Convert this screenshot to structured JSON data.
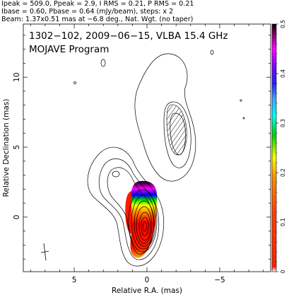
{
  "header": {
    "line1": "Ipeak = 509.0, Ppeak = 2.9, I RMS = 0.21, P RMS = 0.21",
    "line2": "Ibase = 0.60, Pbase = 0.64 (mJy/beam), steps: x 2",
    "line3": "Beam: 1.37x0.51 mas at −6.8 deg., Nat. Wgt. (no taper)"
  },
  "chart_data": {
    "type": "contour",
    "title_line1": "1302−102, 2009−06−15, VLBA 15.4 GHz",
    "title_line2": "MOJAVE Program",
    "xlabel": "Relative R.A. (mas)",
    "ylabel": "Relative Declination (mas)",
    "xlim": [
      8.5,
      -8.5
    ],
    "ylim": [
      -3.9,
      13.8
    ],
    "x_ticks": [
      5,
      0,
      -5
    ],
    "y_ticks": [
      0,
      5,
      10
    ],
    "colorbar": {
      "range": [
        0,
        0.5
      ],
      "ticks": [
        0,
        0.1,
        0.2,
        0.3,
        0.4,
        0.5
      ],
      "colors": [
        "#ffffff",
        "#ff0000",
        "#ff8000",
        "#ffff00",
        "#00e000",
        "#00c0ff",
        "#4060ff",
        "#a000ff",
        "#ff00ff",
        "#000000"
      ]
    },
    "contour_base_mJy_per_beam": 0.6,
    "contour_step_factor": 2,
    "peak_mJy_per_beam": 509.0,
    "beam": {
      "major_mas": 1.37,
      "minor_mas": 0.51,
      "pa_deg": -6.8
    }
  }
}
